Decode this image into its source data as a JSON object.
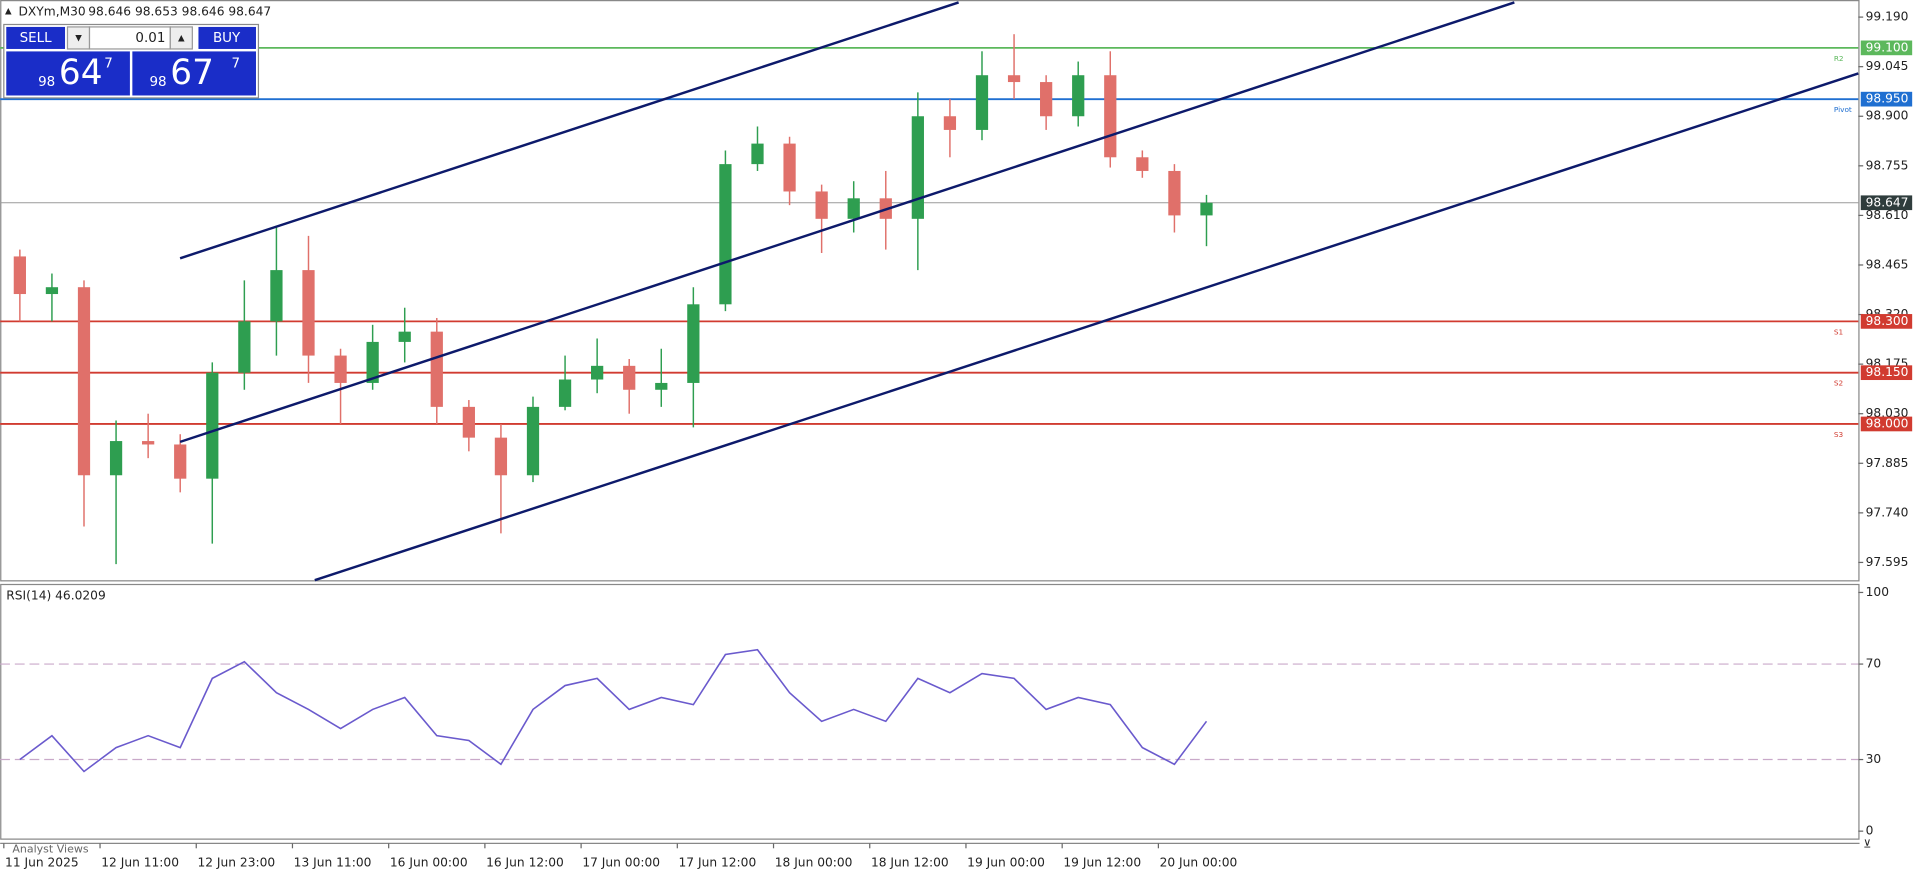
{
  "chart_data": {
    "type": "candlestick",
    "symbol": "DXYm,M30",
    "quote": "98.646 98.653 98.646 98.647",
    "categories": [
      "11 Jun 2025",
      null,
      null,
      "12 Jun 11:00",
      null,
      null,
      "12 Jun 23:00",
      null,
      null,
      "13 Jun 11:00",
      null,
      null,
      "16 Jun 00:00",
      null,
      null,
      "16 Jun 12:00",
      null,
      null,
      "17 Jun 00:00",
      null,
      null,
      "17 Jun 12:00",
      null,
      null,
      "18 Jun 00:00",
      null,
      null,
      "18 Jun 12:00",
      null,
      null,
      "19 Jun 00:00",
      null,
      null,
      "19 Jun 12:00",
      null,
      null,
      "20 Jun 00:00",
      null
    ],
    "open": [
      98.49,
      98.38,
      98.4,
      97.85,
      97.95,
      97.94,
      97.84,
      98.15,
      98.3,
      98.45,
      98.2,
      98.12,
      98.24,
      98.27,
      98.05,
      97.96,
      97.85,
      98.05,
      98.13,
      98.17,
      98.1,
      98.12,
      98.35,
      98.76,
      98.82,
      98.68,
      98.6,
      98.66,
      98.6,
      98.9,
      98.86,
      99.02,
      99.0,
      98.9,
      99.02,
      98.78,
      98.74,
      98.61
    ],
    "high": [
      98.51,
      98.44,
      98.42,
      98.01,
      98.03,
      97.97,
      98.18,
      98.42,
      98.58,
      98.55,
      98.22,
      98.29,
      98.34,
      98.31,
      98.07,
      98.0,
      98.08,
      98.2,
      98.25,
      98.19,
      98.22,
      98.4,
      98.8,
      98.87,
      98.84,
      98.7,
      98.71,
      98.74,
      98.97,
      98.95,
      99.09,
      99.14,
      99.02,
      99.06,
      99.09,
      98.8,
      98.76,
      98.67
    ],
    "low": [
      98.3,
      98.3,
      97.7,
      97.59,
      97.9,
      97.8,
      97.65,
      98.1,
      98.2,
      98.12,
      98.0,
      98.1,
      98.18,
      98.0,
      97.92,
      97.68,
      97.83,
      98.04,
      98.09,
      98.03,
      98.05,
      97.99,
      98.33,
      98.74,
      98.64,
      98.5,
      98.56,
      98.51,
      98.45,
      98.78,
      98.83,
      98.95,
      98.86,
      98.87,
      98.75,
      98.72,
      98.56,
      98.52
    ],
    "close": [
      98.38,
      98.4,
      97.85,
      97.95,
      97.94,
      97.84,
      98.15,
      98.3,
      98.45,
      98.2,
      98.12,
      98.24,
      98.27,
      98.05,
      97.96,
      97.85,
      98.05,
      98.13,
      98.17,
      98.1,
      98.12,
      98.35,
      98.76,
      98.82,
      98.68,
      98.6,
      98.66,
      98.6,
      98.9,
      98.86,
      99.02,
      99.0,
      98.9,
      99.02,
      98.78,
      98.74,
      98.61,
      98.647
    ],
    "up_color": "#2e9e50",
    "down_color": "#e0706a",
    "ylim": [
      97.543,
      99.24
    ],
    "yticks": [
      {
        "value": 99.19,
        "label": "99.190"
      },
      {
        "value": 99.045,
        "label": "99.045"
      },
      {
        "value": 98.9,
        "label": "98.900"
      },
      {
        "value": 98.755,
        "label": "98.755"
      },
      {
        "value": 98.61,
        "label": "98.610"
      },
      {
        "value": 98.465,
        "label": "98.465"
      },
      {
        "value": 98.32,
        "label": "98.320"
      },
      {
        "value": 98.175,
        "label": "98.175"
      },
      {
        "value": 98.03,
        "label": "98.030"
      },
      {
        "value": 97.885,
        "label": "97.885"
      },
      {
        "value": 97.74,
        "label": "97.740"
      },
      {
        "value": 97.595,
        "label": "97.595"
      }
    ],
    "current_price": 98.647,
    "levels": [
      {
        "value": 99.1,
        "label": "99.100",
        "tag": "R2",
        "color": "#5cb85c"
      },
      {
        "value": 98.95,
        "label": "98.950",
        "tag": "Pivot",
        "color": "#1f6fd1"
      },
      {
        "value": 98.3,
        "label": "98.300",
        "tag": "S1",
        "color": "#d13b30"
      },
      {
        "value": 98.15,
        "label": "98.150",
        "tag": "S2",
        "color": "#d13b30"
      },
      {
        "value": 98,
        "label": "98.000",
        "tag": "S3",
        "color": "#d13b30"
      }
    ],
    "rsi": {
      "title": "RSI(14) 46.0209",
      "color": "#6a5acd",
      "values": [
        30,
        40,
        25,
        35,
        40,
        35,
        64,
        71,
        58,
        51,
        43,
        51,
        56,
        40,
        38,
        28,
        51,
        61,
        64,
        51,
        56,
        53,
        74,
        76,
        58,
        46,
        51,
        46,
        64,
        58,
        66,
        64,
        51,
        56,
        53,
        35,
        28,
        46.0209
      ],
      "ylim": [
        0,
        100
      ],
      "yticks": [
        100,
        70,
        30,
        0
      ],
      "dashed_levels": [
        70,
        30
      ]
    },
    "trade_panel": {
      "sell": "SELL",
      "buy": "BUY",
      "lot": "0.01",
      "bid": {
        "big": "98",
        "main": "64",
        "small": "7"
      },
      "ask": {
        "big": "98",
        "main": "67",
        "small": "7"
      }
    },
    "footer": "Analyst Views"
  }
}
